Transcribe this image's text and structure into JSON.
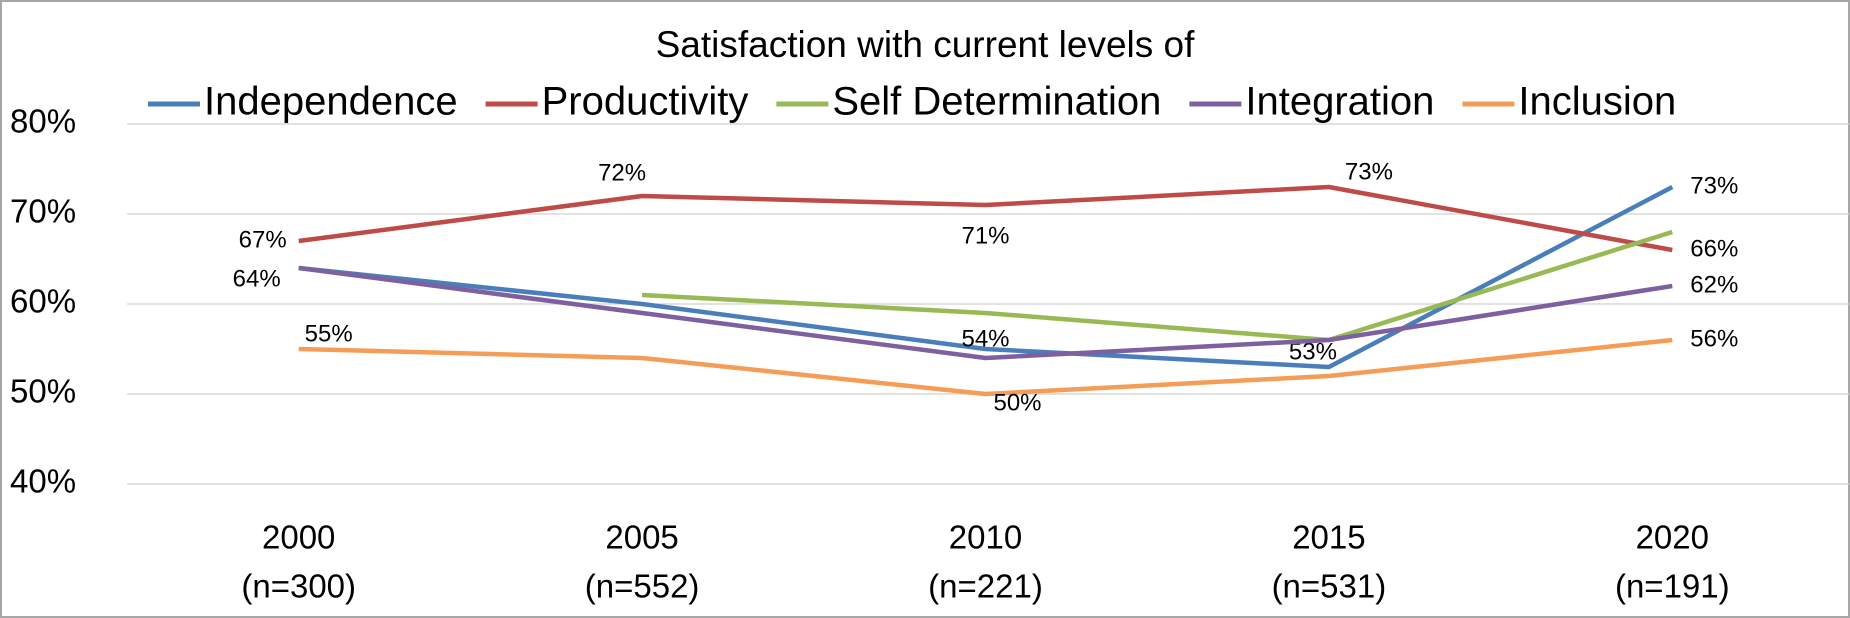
{
  "chart_data": {
    "type": "line",
    "title": "Satisfaction with current levels of",
    "categories": [
      "2000",
      "2005",
      "2010",
      "2015",
      "2020"
    ],
    "sample_sizes": [
      "(n=300)",
      "(n=552)",
      "(n=221)",
      "(n=531)",
      "(n=191)"
    ],
    "ylim": [
      40,
      80
    ],
    "yticks": [
      {
        "value": 40,
        "label": "40%"
      },
      {
        "value": 50,
        "label": "50%"
      },
      {
        "value": 60,
        "label": "60%"
      },
      {
        "value": 70,
        "label": "70%"
      },
      {
        "value": 80,
        "label": "80%"
      }
    ],
    "grid": true,
    "legend": "top",
    "series": [
      {
        "name": "Independence",
        "color": "#4a7ebb",
        "values": [
          64,
          60,
          55,
          53,
          73
        ],
        "value_labels": [
          "64%",
          null,
          null,
          "53%",
          "73%"
        ]
      },
      {
        "name": "Productivity",
        "color": "#be4b48",
        "values": [
          67,
          72,
          71,
          73,
          66
        ],
        "value_labels": [
          "67%",
          "72%",
          "71%",
          "73%",
          "66%"
        ]
      },
      {
        "name": "Self Determination",
        "color": "#98b954",
        "values": [
          null,
          61,
          59,
          56,
          68
        ]
      },
      {
        "name": "Integration",
        "color": "#7d60a0",
        "values": [
          64,
          59,
          54,
          56,
          62
        ],
        "value_labels": [
          null,
          null,
          "54%",
          null,
          "62%"
        ]
      },
      {
        "name": "Inclusion",
        "color": "#f59d56",
        "values": [
          55,
          54,
          50,
          52,
          56
        ],
        "value_labels": [
          "55%",
          null,
          "50%",
          null,
          "56%"
        ]
      }
    ]
  }
}
